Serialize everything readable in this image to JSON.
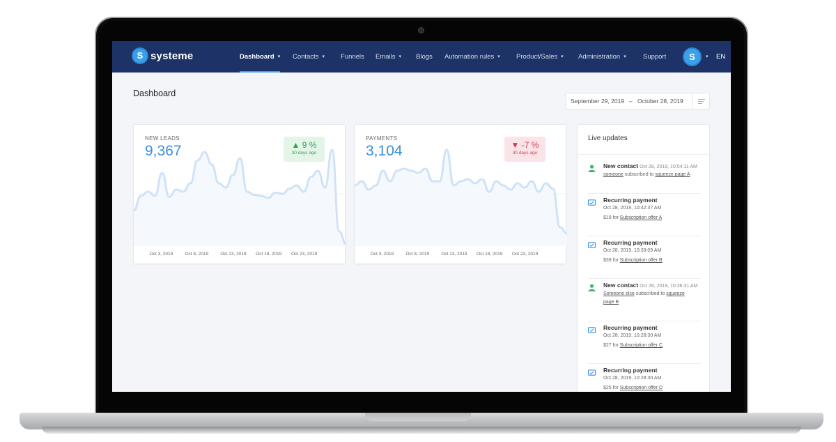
{
  "app": {
    "logo_text": "systeme"
  },
  "nav": {
    "items": [
      {
        "label": "Dashboard",
        "active": true,
        "caret": true
      },
      {
        "label": "Contacts",
        "caret": true
      },
      {
        "label": "Funnels",
        "caret": false
      },
      {
        "label": "Emails",
        "caret": true
      },
      {
        "label": "Blogs",
        "caret": false
      },
      {
        "label": "Automation rules",
        "caret": true
      },
      {
        "label": "Product/Sales",
        "caret": true
      },
      {
        "label": "Administration",
        "caret": true
      },
      {
        "label": "Support",
        "caret": false
      }
    ],
    "lang": "EN",
    "caret_glyph": "▾"
  },
  "page": {
    "title": "Dashboard",
    "date_from": "September 29, 2019",
    "date_sep": "–",
    "date_to": "October 28, 2019"
  },
  "leads": {
    "label": "NEW LEADS",
    "value": "9,367",
    "delta": "▲ 9 %",
    "delta_sub": "30 days ago",
    "delta_color": "#2ea254"
  },
  "payments": {
    "label": "PAYMENTS",
    "value": "3,104",
    "delta": "▼ -7 %",
    "delta_sub": "30 days ago",
    "delta_color": "#d6394f"
  },
  "chart_data": [
    {
      "type": "area",
      "x": [
        0,
        1,
        2,
        3,
        4,
        5,
        6,
        7,
        8,
        9,
        10,
        11,
        12,
        13,
        14,
        15,
        16,
        17,
        18,
        19,
        20,
        21,
        22,
        23,
        24,
        25,
        26,
        27,
        28,
        29,
        30
      ],
      "values": [
        34,
        48,
        52,
        48,
        70,
        47,
        54,
        52,
        60,
        82,
        90,
        78,
        60,
        56,
        68,
        84,
        52,
        49,
        48,
        46,
        51,
        50,
        55,
        58,
        52,
        66,
        72,
        56,
        92,
        14,
        2
      ],
      "xticks": [
        "Oct 3, 2019",
        "Oct 8, 2019",
        "Oct 13, 2019",
        "Oct 18, 2019",
        "Oct 23, 2019"
      ],
      "ylim": [
        0,
        100
      ],
      "color": "#cfe2f7"
    },
    {
      "type": "area",
      "x": [
        0,
        1,
        2,
        3,
        4,
        5,
        6,
        7,
        8,
        9,
        10,
        11,
        12,
        13,
        14,
        15,
        16,
        17,
        18,
        19,
        20,
        21,
        22,
        23,
        24,
        25,
        26,
        27,
        28,
        29,
        30
      ],
      "values": [
        58,
        62,
        54,
        58,
        72,
        62,
        72,
        74,
        72,
        70,
        74,
        62,
        62,
        92,
        58,
        62,
        64,
        60,
        64,
        52,
        62,
        58,
        54,
        60,
        56,
        62,
        52,
        60,
        55,
        18,
        12
      ],
      "xticks": [
        "Oct 3, 2019",
        "Oct 8, 2019",
        "Oct 13, 2019",
        "Oct 18, 2019",
        "Oct 23, 2019"
      ],
      "ylim": [
        0,
        100
      ],
      "color": "#cfe2f7"
    }
  ],
  "live": {
    "title": "Live updates",
    "updates": [
      {
        "kind": "contact",
        "title": "New contact",
        "time": "Oct 28, 2019, 10:54:11 AM",
        "l1a": "someone",
        "l1b": " subscribed to ",
        "l1c": "squeeze page A"
      },
      {
        "kind": "payment",
        "title": "Recurring payment",
        "time": "Oct 28, 2019, 10:42:37 AM",
        "l2a": "$19 for ",
        "l2b": "Subscription offer A"
      },
      {
        "kind": "payment",
        "title": "Recurring payment",
        "time": "Oct 28, 2019, 10:39:09 AM",
        "l2a": "$39 for ",
        "l2b": "Subscription offer B"
      },
      {
        "kind": "contact",
        "title": "New contact",
        "time": "Oct 28, 2019, 10:36:31 AM",
        "l1a": "Someone else",
        "l1b": " subscribed to ",
        "l1c": "squeeze",
        "l1d": "page B"
      },
      {
        "kind": "payment",
        "title": "Recurring payment",
        "time": "Oct 28, 2019, 10:28:30 AM",
        "l2a": "$27 for ",
        "l2b": "Subscription offer C"
      },
      {
        "kind": "payment",
        "title": "Recurring payment",
        "time": "Oct 28, 2019, 10:28:30 AM",
        "l2a": "$25 for ",
        "l2b": "Subscription offer D"
      }
    ]
  }
}
